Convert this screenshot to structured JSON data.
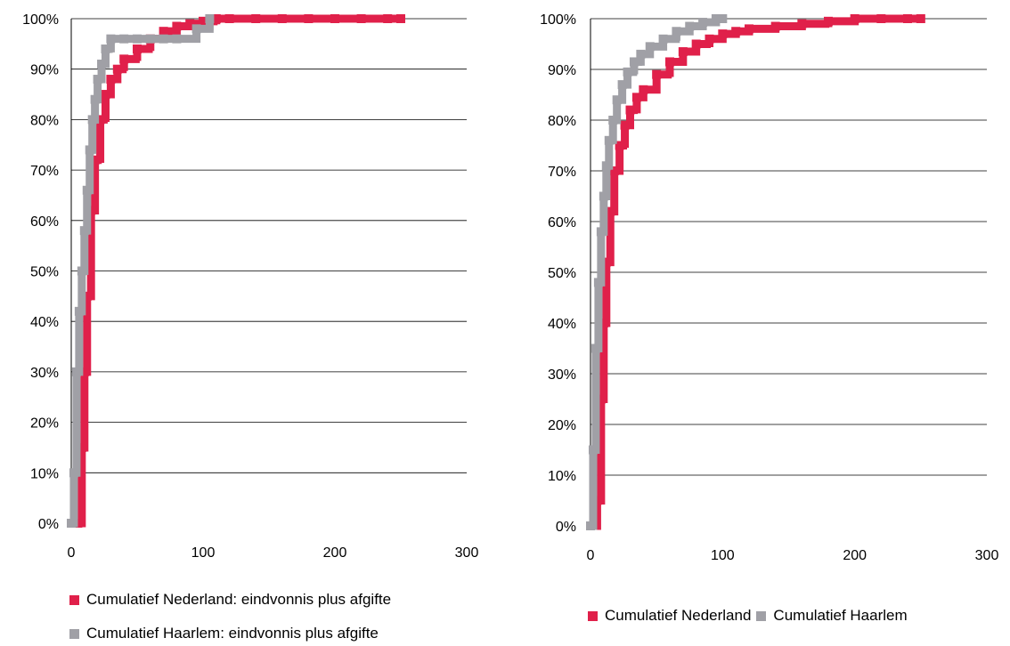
{
  "chart_data": [
    {
      "type": "line",
      "title": "",
      "xlabel": "",
      "ylabel": "",
      "xlim": [
        0,
        300
      ],
      "ylim": [
        0,
        100
      ],
      "x_ticks": [
        "0",
        "100",
        "200",
        "300"
      ],
      "y_ticks": [
        "0%",
        "10%",
        "20%",
        "30%",
        "40%",
        "50%",
        "60%",
        "70%",
        "80%",
        "90%",
        "100%"
      ],
      "grid": "horizontal",
      "legend_position": "bottom-stacked",
      "series": [
        {
          "name": "Cumulatief Nederland: eindvonnis plus afgifte",
          "color": "#e0204a",
          "x": [
            0,
            5,
            8,
            10,
            12,
            15,
            18,
            22,
            26,
            30,
            35,
            40,
            50,
            60,
            70,
            80,
            90,
            100,
            110,
            120,
            140,
            160,
            180,
            200,
            220,
            240,
            250
          ],
          "y": [
            0,
            0,
            15,
            30,
            45,
            62,
            72,
            80,
            85,
            88,
            90,
            92,
            94,
            96,
            97.5,
            98.5,
            99,
            99.5,
            100,
            100,
            100,
            100,
            100,
            100,
            100,
            100,
            100
          ]
        },
        {
          "name": "Cumulatief Haarlem: eindvonnis plus afgifte",
          "color": "#a0a0a6",
          "x": [
            0,
            2,
            4,
            6,
            8,
            10,
            12,
            14,
            16,
            18,
            20,
            23,
            26,
            30,
            40,
            50,
            60,
            70,
            80,
            95,
            105
          ],
          "y": [
            0,
            10,
            30,
            42,
            50,
            58,
            66,
            74,
            80,
            84,
            88,
            91,
            94,
            96,
            96,
            96,
            96,
            96,
            96,
            98,
            100
          ]
        }
      ]
    },
    {
      "type": "line",
      "title": "",
      "xlabel": "",
      "ylabel": "",
      "xlim": [
        0,
        300
      ],
      "ylim": [
        0,
        100
      ],
      "x_ticks": [
        "0",
        "100",
        "200",
        "300"
      ],
      "y_ticks": [
        "0%",
        "10%",
        "20%",
        "30%",
        "40%",
        "50%",
        "60%",
        "70%",
        "80%",
        "90%",
        "100%"
      ],
      "grid": "horizontal",
      "legend_position": "bottom",
      "series": [
        {
          "name": "Cumulatief Nederland",
          "color": "#e0204a",
          "x": [
            0,
            5,
            8,
            10,
            12,
            15,
            18,
            22,
            26,
            30,
            35,
            40,
            50,
            60,
            70,
            80,
            90,
            100,
            110,
            120,
            140,
            160,
            180,
            200,
            220,
            240,
            250
          ],
          "y": [
            0,
            5,
            25,
            40,
            52,
            62,
            70,
            75,
            79,
            82,
            84.5,
            86,
            89,
            91.5,
            93.5,
            95,
            96,
            97,
            97.5,
            98,
            98.5,
            99,
            99.5,
            100,
            100,
            100,
            100
          ]
        },
        {
          "name": "Cumulatief Haarlem",
          "color": "#a0a0a6",
          "x": [
            0,
            2,
            4,
            6,
            8,
            10,
            12,
            14,
            17,
            20,
            24,
            28,
            33,
            38,
            45,
            55,
            65,
            75,
            85,
            95,
            100
          ],
          "y": [
            0,
            15,
            35,
            48,
            58,
            65,
            71,
            76,
            80,
            84,
            87,
            89.5,
            91.5,
            93,
            94.5,
            96,
            97.5,
            98.5,
            99.3,
            100,
            100
          ]
        }
      ]
    }
  ],
  "legends": [
    {
      "items": [
        "Cumulatief Nederland: eindvonnis plus afgifte",
        "Cumulatief Haarlem: eindvonnis plus afgifte"
      ]
    },
    {
      "items": [
        "Cumulatief Nederland",
        "Cumulatief Haarlem"
      ]
    }
  ]
}
